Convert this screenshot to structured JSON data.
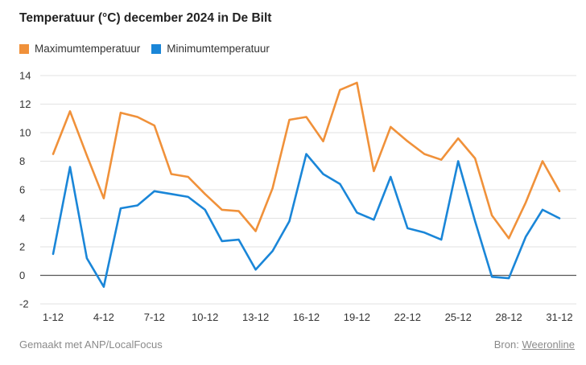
{
  "chart_data": {
    "type": "line",
    "title": "Temperatuur (°C) december 2024 in De Bilt",
    "xlabel": "",
    "ylabel": "",
    "x": [
      1,
      2,
      3,
      4,
      5,
      6,
      7,
      8,
      9,
      10,
      11,
      12,
      13,
      14,
      15,
      16,
      17,
      18,
      19,
      20,
      21,
      22,
      23,
      24,
      25,
      26,
      27,
      28,
      29,
      30,
      31
    ],
    "x_tick_labels": [
      "1-12",
      "4-12",
      "7-12",
      "10-12",
      "13-12",
      "16-12",
      "19-12",
      "22-12",
      "25-12",
      "28-12",
      "31-12"
    ],
    "x_tick_positions": [
      1,
      4,
      7,
      10,
      13,
      16,
      19,
      22,
      25,
      28,
      31
    ],
    "ylim": [
      -2,
      14
    ],
    "y_ticks": [
      -2,
      0,
      2,
      4,
      6,
      8,
      10,
      12,
      14
    ],
    "grid": true,
    "legend_position": "top-left",
    "series": [
      {
        "name": "Maximumtemperatuur",
        "color": "#f0913a",
        "values": [
          8.5,
          11.5,
          8.4,
          5.4,
          11.4,
          11.1,
          10.5,
          7.1,
          6.9,
          5.7,
          4.6,
          4.5,
          3.1,
          6.1,
          10.9,
          11.1,
          9.4,
          13.0,
          13.5,
          7.3,
          10.4,
          9.4,
          8.5,
          8.1,
          9.6,
          8.2,
          4.2,
          2.6,
          5.1,
          8.0,
          5.9
        ]
      },
      {
        "name": "Minimumtemperatuur",
        "color": "#1a86d8",
        "values": [
          1.5,
          7.6,
          1.2,
          -0.8,
          4.7,
          4.9,
          5.9,
          5.7,
          5.5,
          4.6,
          2.4,
          2.5,
          0.4,
          1.7,
          3.8,
          8.5,
          7.1,
          6.4,
          4.4,
          3.9,
          6.9,
          3.3,
          3.0,
          2.5,
          8.0,
          3.8,
          -0.1,
          -0.2,
          2.7,
          4.6,
          4.0
        ]
      }
    ]
  },
  "footer": {
    "credit": "Gemaakt met ANP/LocalFocus",
    "source_label": "Bron:",
    "source_link": "Weeronline"
  }
}
